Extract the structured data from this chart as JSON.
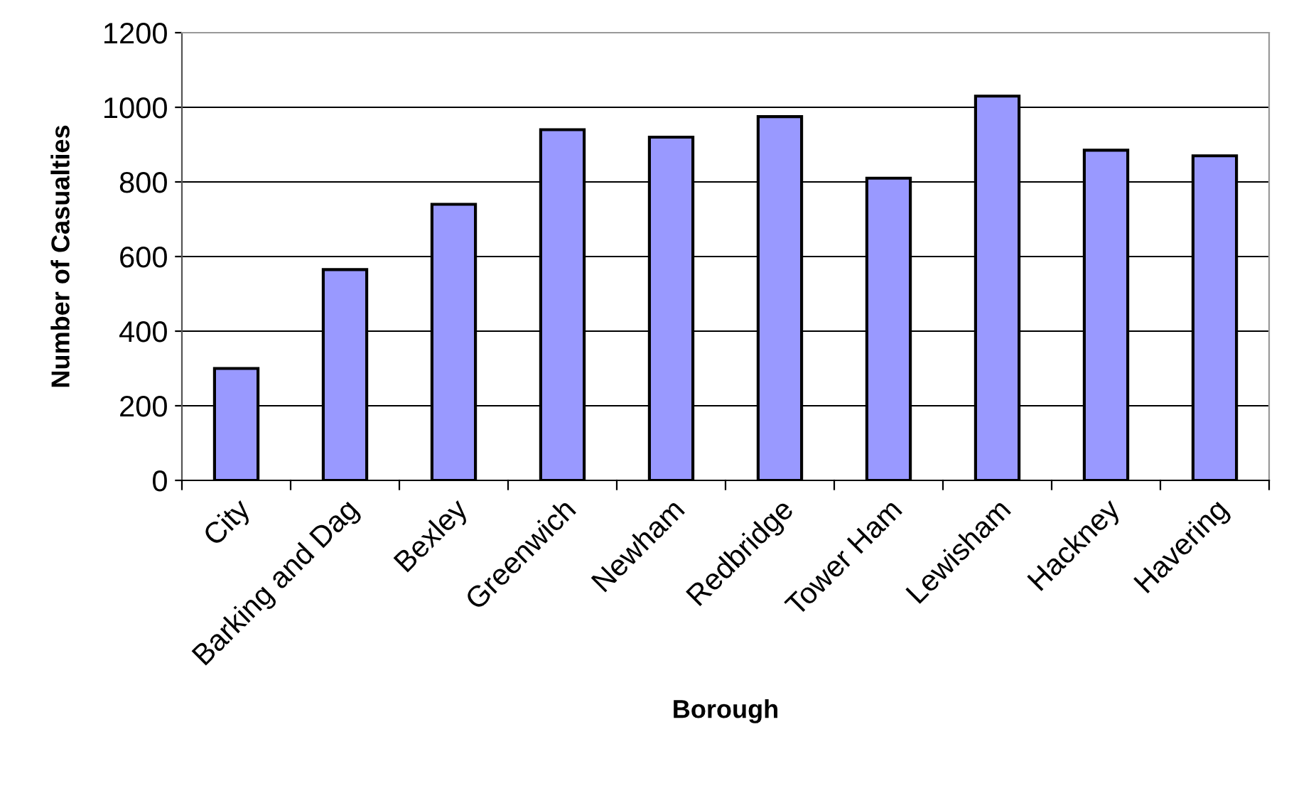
{
  "chart_data": {
    "type": "bar",
    "xlabel": "Borough",
    "ylabel": "Number of Casualties",
    "categories": [
      "City",
      "Barking and Dag",
      "Bexley",
      "Greenwich",
      "Newham",
      "Redbridge",
      "Tower Ham",
      "Lewisham",
      "Hackney",
      "Havering"
    ],
    "values": [
      300,
      565,
      740,
      940,
      920,
      975,
      810,
      1030,
      885,
      870
    ],
    "color": "#9999ff",
    "ylim": [
      0,
      1200
    ],
    "yticks": [
      0,
      200,
      400,
      600,
      800,
      1000,
      1200
    ],
    "grid": "y",
    "legend": false
  }
}
